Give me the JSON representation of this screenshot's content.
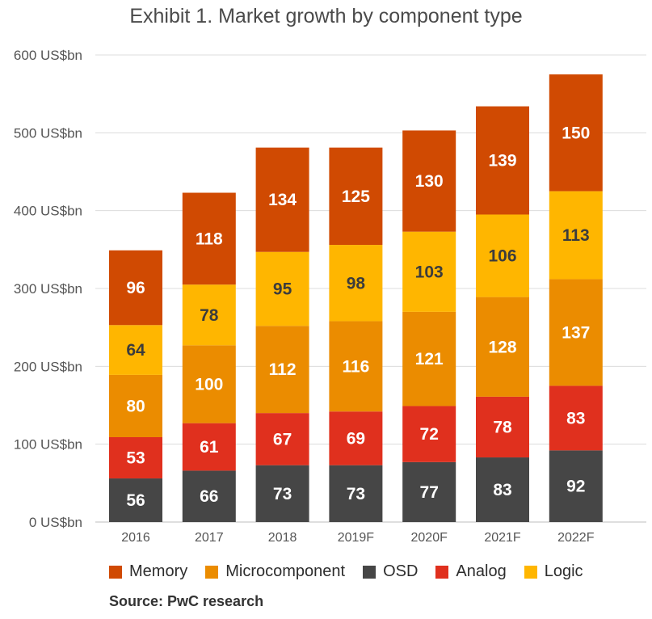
{
  "chart_data": {
    "type": "bar",
    "stacked": true,
    "title": "Exhibit 1. Market growth by component type",
    "categories": [
      "2016",
      "2017",
      "2018",
      "2019F",
      "2020F",
      "2021F",
      "2022F"
    ],
    "series": [
      {
        "name": "OSD",
        "color": "#464646",
        "values": [
          56,
          66,
          73,
          73,
          77,
          83,
          92
        ]
      },
      {
        "name": "Analog",
        "color": "#e0301e",
        "values": [
          53,
          61,
          67,
          69,
          72,
          78,
          83
        ]
      },
      {
        "name": "Microcomponent",
        "color": "#eb8c00",
        "values": [
          80,
          100,
          112,
          116,
          121,
          128,
          137
        ]
      },
      {
        "name": "Logic",
        "color": "#ffb600",
        "values": [
          64,
          78,
          95,
          98,
          103,
          106,
          113
        ]
      },
      {
        "name": "Memory",
        "color": "#d04a02",
        "values": [
          96,
          118,
          134,
          125,
          130,
          139,
          150
        ]
      }
    ],
    "ylim": [
      0,
      600
    ],
    "yticks": [
      {
        "value": 0,
        "label": "0 US$bn"
      },
      {
        "value": 100,
        "label": "100 US$bn"
      },
      {
        "value": 200,
        "label": "200 US$bn"
      },
      {
        "value": 300,
        "label": "300 US$bn"
      },
      {
        "value": 400,
        "label": "400 US$bn"
      },
      {
        "value": 500,
        "label": "500 US$bn"
      },
      {
        "value": 600,
        "label": "600 US$bn"
      }
    ],
    "grid": true,
    "legend_position": "bottom",
    "legend_order": [
      "Memory",
      "Microcomponent",
      "OSD",
      "Analog",
      "Logic"
    ],
    "source": "Source: PwC research"
  },
  "legend": {
    "memory": "Memory",
    "microcomponent": "Microcomponent",
    "osd": "OSD",
    "analog": "Analog",
    "logic": "Logic",
    "colors": {
      "memory": "#d04a02",
      "microcomponent": "#eb8c00",
      "osd": "#464646",
      "analog": "#e0301e",
      "logic": "#ffb600"
    }
  }
}
